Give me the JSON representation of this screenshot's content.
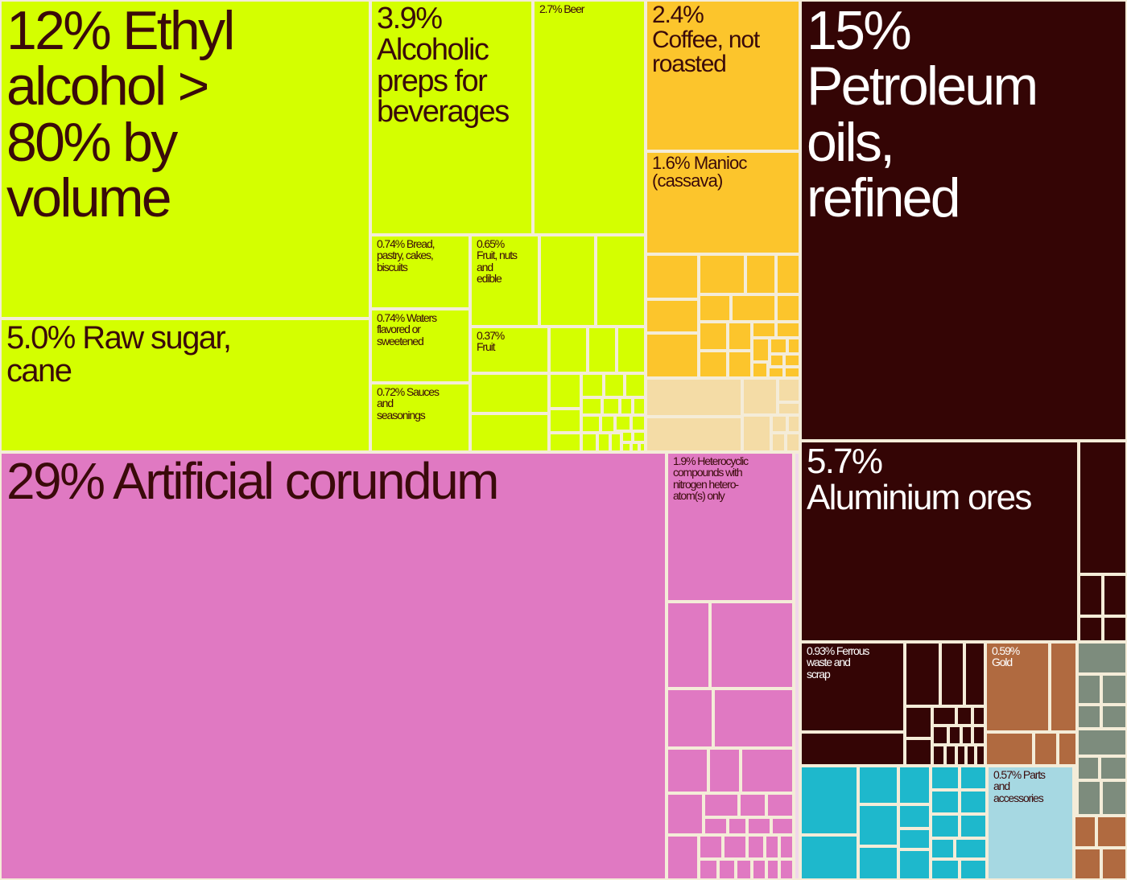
{
  "chart_data": {
    "type": "treemap",
    "colors": {
      "food": "#d4ff00",
      "vegetable": "#fcc52c",
      "mineral": "#340505",
      "chemical": "#e079c2",
      "metal": "#b06a40",
      "machine": "#1eb8cc",
      "transport": "#a6d8e2",
      "misc": "#7d8c7d",
      "label_dark": "#3a0a0a",
      "label_light": "#ffffff"
    },
    "items": [
      {
        "label": "12% Ethyl alcohol > 80% by volume",
        "value": 12,
        "group": "food"
      },
      {
        "label": "5.0% Raw sugar, cane",
        "value": 5.0,
        "group": "food"
      },
      {
        "label": "3.9% Alcoholic preps for beverages",
        "value": 3.9,
        "group": "food"
      },
      {
        "label": "2.7% Beer",
        "value": 2.7,
        "group": "food"
      },
      {
        "label": "0.74% Bread, pastry, cakes, biscuits",
        "value": 0.74,
        "group": "food"
      },
      {
        "label": "0.74% Waters flavored or sweetened",
        "value": 0.74,
        "group": "food"
      },
      {
        "label": "0.72% Sauces and seasonings",
        "value": 0.72,
        "group": "food"
      },
      {
        "label": "0.65% Fruit, nuts and edible",
        "value": 0.65,
        "group": "food"
      },
      {
        "label": "0.37% Fruit",
        "value": 0.37,
        "group": "food"
      },
      {
        "label": "2.4% Coffee, not roasted",
        "value": 2.4,
        "group": "vegetable"
      },
      {
        "label": "1.6% Manioc (cassava)",
        "value": 1.6,
        "group": "vegetable"
      },
      {
        "label": "15% Petroleum oils, refined",
        "value": 15,
        "group": "mineral"
      },
      {
        "label": "5.7% Aluminium ores",
        "value": 5.7,
        "group": "mineral"
      },
      {
        "label": "29% Artificial corundum",
        "value": 29,
        "group": "chemical"
      },
      {
        "label": "1.9% Heterocyclic compounds with nitrogen hetero-atom(s) only",
        "value": 1.9,
        "group": "chemical"
      },
      {
        "label": "0.93% Ferrous waste and scrap",
        "value": 0.93,
        "group": "mineral"
      },
      {
        "label": "0.59% Gold",
        "value": 0.59,
        "group": "metal"
      },
      {
        "label": "0.57% Parts and accessories",
        "value": 0.57,
        "group": "transport"
      }
    ]
  }
}
